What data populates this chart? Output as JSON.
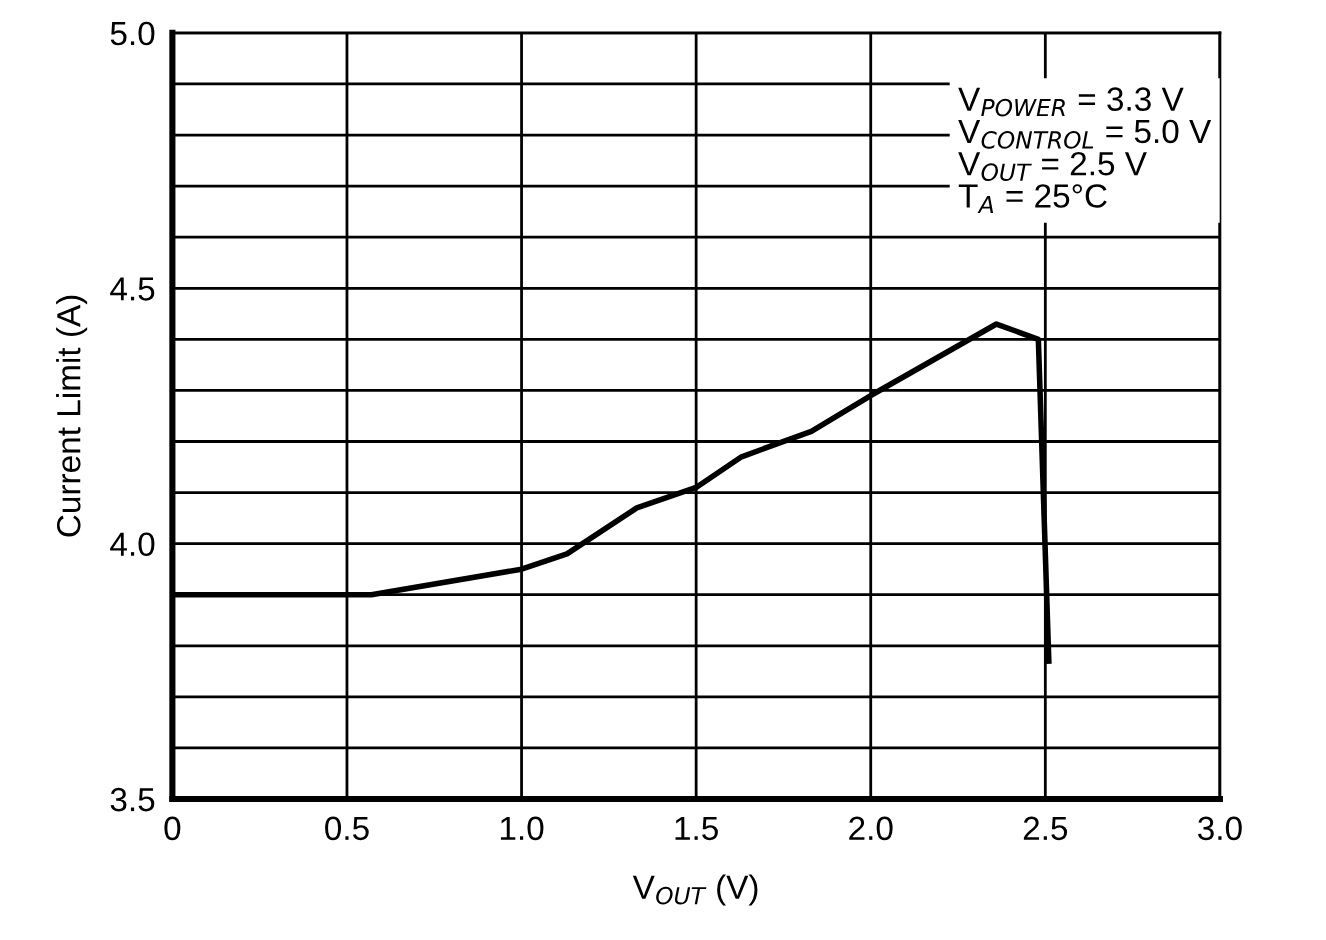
{
  "chart_data": {
    "type": "line",
    "xlabel": "V$_{OUT}$ (V)",
    "ylabel": "Current Limit (A)",
    "annotations": [
      "V$_{POWER}$ = 3.3 V\nV$_{CONTROL}$ = 5.0 V\nV$_{OUT}$ = 2.5 V\nT$_{A}$ = 25°C"
    ],
    "series": [
      {
        "color": "#000000",
        "x": [
          0,
          0.57,
          1.0,
          1.13,
          1.33,
          1.5,
          1.63,
          1.83,
          2.0,
          2.36,
          2.48,
          2.51
        ],
        "values": [
          3.9,
          3.9,
          3.95,
          3.98,
          4.07,
          4.11,
          4.17,
          4.22,
          4.29,
          4.43,
          4.4,
          3.77
        ]
      }
    ],
    "xlim": [
      0,
      3.0
    ],
    "xticks": [
      0,
      {
        "value": 0.5,
        "label": "0.5"
      },
      {
        "value": 1.0,
        "label": "1.0"
      },
      {
        "value": 1.5,
        "label": "1.5"
      },
      {
        "value": 2.0,
        "label": "2.0"
      },
      {
        "value": 2.5,
        "label": "2.5"
      },
      {
        "value": 3.0,
        "label": "3.0"
      }
    ],
    "ylim": [
      3.5,
      5.0
    ],
    "yticks": [
      {
        "value": 3.5,
        "label": "3.5"
      },
      {
        "value": 3.6,
        "label": null
      },
      {
        "value": 3.7,
        "label": null
      },
      {
        "value": 3.8,
        "label": null
      },
      {
        "value": 3.9,
        "label": null
      },
      {
        "value": 4.0,
        "label": "4.0"
      },
      {
        "value": 4.1,
        "label": null
      },
      {
        "value": 4.2,
        "label": null
      },
      {
        "value": 4.3,
        "label": null
      },
      {
        "value": 4.4,
        "label": null
      },
      {
        "value": 4.5,
        "label": "4.5"
      },
      {
        "value": 4.6,
        "label": null
      },
      {
        "value": 4.7,
        "label": null
      },
      {
        "value": 4.8,
        "label": null
      },
      {
        "value": 4.9,
        "label": null
      },
      {
        "value": 5.0,
        "label": "5.0"
      }
    ],
    "grid": true,
    "legend": false,
    "marker": "none",
    "line_style": "solid"
  }
}
